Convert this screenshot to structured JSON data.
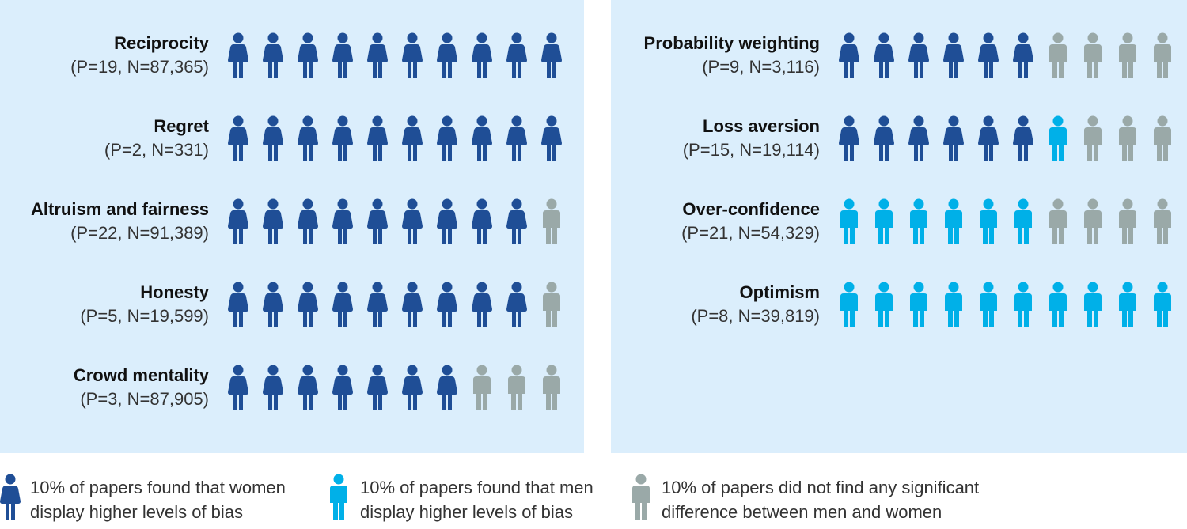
{
  "chart_data": {
    "type": "pictogram",
    "series": [
      {
        "name": "10% of papers found that women display higher levels of bias",
        "color": "#1f4e96",
        "icon": "woman"
      },
      {
        "name": "10% of papers found that men display higher levels of bias",
        "color": "#00b0e8",
        "icon": "man"
      },
      {
        "name": "10% of papers did not find any significant difference between men and women",
        "color": "#9aa9a8",
        "icon": "man"
      }
    ],
    "panels": [
      {
        "rows": [
          {
            "label": "Reciprocity",
            "detail": "(P=19, N=87,365)",
            "values": [
              10,
              0,
              0
            ]
          },
          {
            "label": "Regret",
            "detail": "(P=2, N=331)",
            "values": [
              10,
              0,
              0
            ]
          },
          {
            "label": "Altruism and fairness",
            "detail": "(P=22, N=91,389)",
            "values": [
              9,
              0,
              1
            ]
          },
          {
            "label": "Honesty",
            "detail": "(P=5, N=19,599)",
            "values": [
              9,
              0,
              1
            ]
          },
          {
            "label": "Crowd mentality",
            "detail": "(P=3, N=87,905)",
            "values": [
              7,
              0,
              3
            ]
          }
        ]
      },
      {
        "rows": [
          {
            "label": "Probability weighting",
            "detail": "(P=9, N=3,116)",
            "values": [
              6,
              0,
              4
            ]
          },
          {
            "label": "Loss aversion",
            "detail": "(P=15, N=19,114)",
            "values": [
              6,
              1,
              3
            ]
          },
          {
            "label": "Over-confidence",
            "detail": "(P=21, N=54,329)",
            "values": [
              0,
              6,
              4
            ]
          },
          {
            "label": "Optimism",
            "detail": "(P=8, N=39,819)",
            "values": [
              0,
              10,
              0
            ]
          }
        ]
      }
    ]
  }
}
